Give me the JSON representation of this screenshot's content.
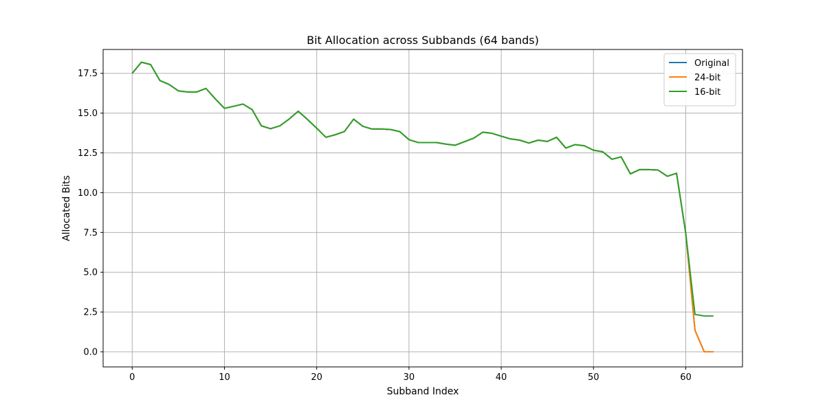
{
  "chart_data": {
    "type": "line",
    "title": "Bit Allocation across Subbands (64 bands)",
    "xlabel": "Subband Index",
    "ylabel": "Allocated Bits",
    "xlim": [
      -3.15,
      66.15
    ],
    "ylim": [
      -0.95,
      19.0
    ],
    "x_ticks": [
      0,
      10,
      20,
      30,
      40,
      50,
      60
    ],
    "y_ticks": [
      0.0,
      2.5,
      5.0,
      7.5,
      10.0,
      12.5,
      15.0,
      17.5
    ],
    "grid": true,
    "legend_position": "top-right",
    "x": [
      0,
      1,
      2,
      3,
      4,
      5,
      6,
      7,
      8,
      9,
      10,
      11,
      12,
      13,
      14,
      15,
      16,
      17,
      18,
      19,
      20,
      21,
      22,
      23,
      24,
      25,
      26,
      27,
      28,
      29,
      30,
      31,
      32,
      33,
      34,
      35,
      36,
      37,
      38,
      39,
      40,
      41,
      42,
      43,
      44,
      45,
      46,
      47,
      48,
      49,
      50,
      51,
      52,
      53,
      54,
      55,
      56,
      57,
      58,
      59,
      60,
      61,
      62,
      63
    ],
    "series": [
      {
        "name": "Original",
        "color": "#1f77b4",
        "values": [
          17.5,
          18.2,
          18.05,
          17.05,
          16.8,
          16.4,
          16.33,
          16.33,
          16.55,
          15.9,
          15.3,
          15.43,
          15.57,
          15.22,
          14.2,
          14.02,
          14.2,
          14.62,
          15.12,
          14.6,
          14.05,
          13.48,
          13.64,
          13.84,
          14.62,
          14.17,
          14.0,
          14.0,
          13.97,
          13.84,
          13.33,
          13.15,
          13.15,
          13.15,
          13.05,
          12.98,
          13.2,
          13.42,
          13.8,
          13.73,
          13.55,
          13.38,
          13.3,
          13.12,
          13.3,
          13.22,
          13.48,
          12.8,
          13.02,
          12.95,
          12.67,
          12.57,
          12.1,
          12.25,
          11.18,
          11.45,
          11.45,
          11.42,
          11.03,
          11.22,
          7.45,
          1.35,
          0.0,
          0.0
        ]
      },
      {
        "name": "24-bit",
        "color": "#ff7f0e",
        "values": [
          17.5,
          18.2,
          18.05,
          17.05,
          16.8,
          16.4,
          16.33,
          16.33,
          16.55,
          15.9,
          15.3,
          15.43,
          15.57,
          15.22,
          14.2,
          14.02,
          14.2,
          14.62,
          15.12,
          14.6,
          14.05,
          13.48,
          13.64,
          13.84,
          14.62,
          14.17,
          14.0,
          14.0,
          13.97,
          13.84,
          13.33,
          13.15,
          13.15,
          13.15,
          13.05,
          12.98,
          13.2,
          13.42,
          13.8,
          13.73,
          13.55,
          13.38,
          13.3,
          13.12,
          13.3,
          13.22,
          13.48,
          12.8,
          13.02,
          12.95,
          12.67,
          12.57,
          12.1,
          12.25,
          11.18,
          11.45,
          11.45,
          11.42,
          11.03,
          11.22,
          7.45,
          1.35,
          0.0,
          0.0
        ]
      },
      {
        "name": "16-bit",
        "color": "#2ca02c",
        "values": [
          17.5,
          18.2,
          18.05,
          17.05,
          16.8,
          16.4,
          16.33,
          16.33,
          16.55,
          15.9,
          15.3,
          15.43,
          15.57,
          15.22,
          14.2,
          14.02,
          14.2,
          14.62,
          15.12,
          14.6,
          14.05,
          13.48,
          13.64,
          13.84,
          14.62,
          14.17,
          14.0,
          14.0,
          13.97,
          13.84,
          13.33,
          13.15,
          13.15,
          13.15,
          13.05,
          12.98,
          13.2,
          13.42,
          13.8,
          13.73,
          13.55,
          13.38,
          13.3,
          13.12,
          13.3,
          13.22,
          13.48,
          12.8,
          13.02,
          12.95,
          12.67,
          12.57,
          12.1,
          12.25,
          11.18,
          11.45,
          11.45,
          11.42,
          11.03,
          11.22,
          7.45,
          2.35,
          2.25,
          2.25
        ]
      }
    ]
  }
}
